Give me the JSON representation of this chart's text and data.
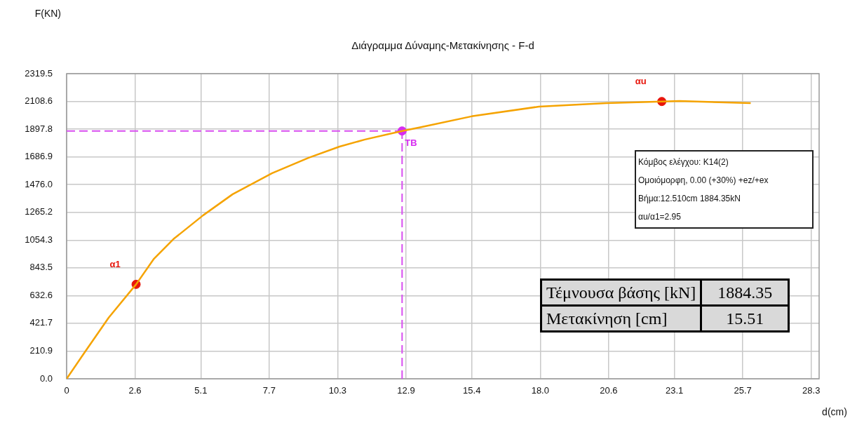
{
  "chart_data": {
    "type": "line",
    "title": "Διάγραμμα Δύναμης-Μετακίνησης - F-d",
    "xlabel": "d(cm)",
    "ylabel": "F(KN)",
    "xlim": [
      0,
      28.6
    ],
    "xticks": [
      0.0,
      {
        "value": 2.6,
        "label": "2.6"
      },
      {
        "value": 5.1,
        "label": "5.1"
      },
      {
        "value": 7.7,
        "label": "7.7"
      },
      {
        "value": 10.3,
        "label": "10.3"
      },
      {
        "value": 12.9,
        "label": "12.9"
      },
      {
        "value": 15.4,
        "label": "15.4"
      },
      {
        "value": 18.0,
        "label": "18.0"
      },
      {
        "value": 20.6,
        "label": "20.6"
      },
      {
        "value": 23.1,
        "label": "23.1"
      },
      {
        "value": 25.7,
        "label": "25.7"
      },
      {
        "value": 28.3,
        "label": "28.3"
      }
    ],
    "ylim": [
      0,
      2319.5
    ],
    "yticks": [
      {
        "value": 0,
        "label": "0.0"
      },
      210.9,
      421.7,
      632.6,
      843.5,
      1054.3,
      {
        "value": 1265.2,
        "label": "1265.2"
      },
      {
        "value": 1476.0,
        "label": "1476.0"
      },
      1686.9,
      1897.8,
      2108.6,
      2319.5
    ],
    "grid": true,
    "legend": false,
    "line_style": "solid",
    "series": [
      {
        "color": "#f5a300",
        "x": [
          0,
          0.64,
          1.6,
          2.64,
          3.32,
          4.06,
          5.19,
          6.31,
          7.81,
          9.2,
          10.37,
          11.34,
          12.75,
          13.47,
          15.39,
          17.95,
          20.51,
          22.62,
          23.29,
          26.0
        ],
        "values": [
          0,
          188,
          465,
          718,
          913,
          1062,
          1243,
          1403,
          1563,
          1680,
          1765,
          1819,
          1884,
          1913,
          1995,
          2069,
          2095,
          2108,
          2112,
          2095
        ]
      },
      {
        "type": "scatter",
        "colors": [
          "#e8160c",
          "#d62cf0",
          "#e8160c"
        ],
        "x": [
          2.64,
          12.75,
          22.62
        ],
        "values": [
          718,
          1884,
          2108
        ]
      }
    ],
    "ref_lines": [
      {
        "axis": "y",
        "value": 1884,
        "color": "#d84ef0",
        "line_style": "dashed"
      },
      {
        "axis": "x",
        "value": 12.75,
        "color": "#d84ef0",
        "line_style": "dashed"
      }
    ],
    "annotations": [
      {
        "text": "α1",
        "x": 2.64,
        "y": 718
      },
      {
        "text": "TB",
        "x": 12.75,
        "y": 1884
      },
      {
        "text": "αu",
        "x": 22.62,
        "y": 2108
      },
      "Κόμβος ελέγχου: K14(2)",
      "Ομοιόμορφη, 0.00 (+30%) +ez/+ex",
      "Βήμα:12.510cm 1884.35kN",
      "αu/α1=2.95",
      "Τέμνουσα βάσης [kN]",
      "1884.35",
      "Μετακίνηση [cm]",
      "15.51"
    ]
  }
}
